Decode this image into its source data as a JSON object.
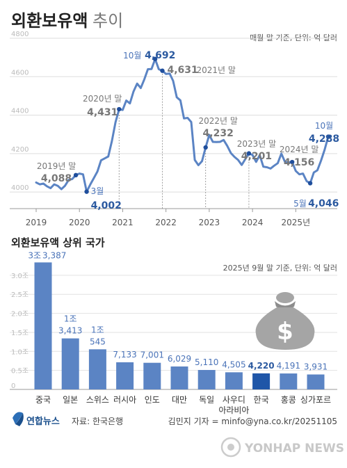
{
  "header": {
    "title": "외환보유액",
    "subtitle": "추이"
  },
  "chart_data": [
    {
      "type": "line",
      "note": "매월 말 기준, 단위: 억 달러",
      "xlabel": "",
      "ylabel": "",
      "ylim": [
        3950,
        4800
      ],
      "yticks": [
        4000,
        4200,
        4400,
        4600,
        4800
      ],
      "xticks": [
        "2019",
        "2020",
        "2021",
        "2022",
        "2023",
        "2024",
        "2025년"
      ],
      "series": [
        {
          "values": [
            4050,
            4040,
            4044,
            4030,
            4020,
            4040,
            4032,
            4015,
            4033,
            4063,
            4068,
            4088,
            4096,
            4092,
            4002,
            4039,
            4073,
            4107,
            4165,
            4175,
            4185,
            4265,
            4363,
            4431,
            4427,
            4476,
            4461,
            4523,
            4564,
            4541,
            4587,
            4639,
            4640,
            4692,
            4639,
            4631,
            4614,
            4617,
            4578,
            4493,
            4477,
            4383,
            4386,
            4364,
            4167,
            4140,
            4161,
            4232,
            4297,
            4261,
            4260,
            4261,
            4271,
            4240,
            4203,
            4183,
            4167,
            4141,
            4171,
            4201,
            4193,
            4157,
            4192,
            4132,
            4129,
            4122,
            4137,
            4150,
            4200,
            4157,
            4154,
            4156,
            4110,
            4092,
            4096,
            4057,
            4046,
            4102,
            4113,
            4163,
            4220,
            4288
          ]
        }
      ],
      "annotations": [
        {
          "label": "2019년 말",
          "value": "4,088"
        },
        {
          "label": "3월",
          "value": "4,002"
        },
        {
          "label": "2020년 말",
          "value": "4,431"
        },
        {
          "label": "10월",
          "value": "4,692"
        },
        {
          "label": "2021년 말",
          "value": "4,631"
        },
        {
          "label": "2022년 말",
          "value": "4,232"
        },
        {
          "label": "2023년 말",
          "value": "4,201"
        },
        {
          "label": "2024년 말",
          "value": "4,156"
        },
        {
          "label": "5월",
          "value": "4,046"
        },
        {
          "label": "10월",
          "value": "4,288"
        }
      ]
    },
    {
      "type": "bar",
      "title": "외환보유액 상위 국가",
      "note": "2025년 9월 말 기준, 단위: 억 달러",
      "yticks": [
        "0",
        "0.5조",
        "1.0조",
        "1.5조",
        "2.0조",
        "2.5조",
        "3.0조"
      ],
      "categories": [
        "중국",
        "일본",
        "스위스",
        "러시아",
        "인도",
        "대만",
        "독일",
        "사우디 아라비아",
        "한국",
        "홍콩",
        "싱가포르"
      ],
      "values": [
        33387,
        13413,
        10545,
        7133,
        7001,
        6029,
        5110,
        4505,
        4220,
        4191,
        3931
      ],
      "value_labels": [
        {
          "prefix": "3조",
          "value": "3,387"
        },
        {
          "prefix": "1조",
          "value": "3,413"
        },
        {
          "prefix": "1조",
          "value": "545"
        },
        {
          "prefix": "",
          "value": "7,133"
        },
        {
          "prefix": "",
          "value": "7,001"
        },
        {
          "prefix": "",
          "value": "6,029"
        },
        {
          "prefix": "",
          "value": "5,110"
        },
        {
          "prefix": "",
          "value": "4,505"
        },
        {
          "prefix": "",
          "value": "4,220"
        },
        {
          "prefix": "",
          "value": "4,191"
        },
        {
          "prefix": "",
          "value": "3,931"
        }
      ],
      "highlight": "한국",
      "colors": {
        "bar": "#5b84c4",
        "highlight": "#1f56a8",
        "line": "#5b84c4"
      }
    }
  ],
  "footer": {
    "logo": "연합뉴스",
    "source": "자료: 한국은행",
    "credit": "김민지 기자 = minfo@yna.co.kr/20251105",
    "watermark": "YONHAP NEWS"
  }
}
